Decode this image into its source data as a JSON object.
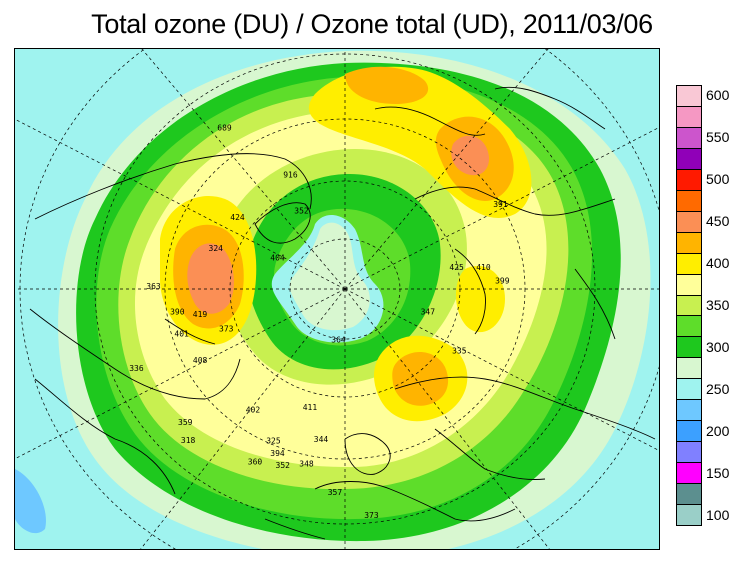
{
  "title": "Total ozone (DU) / Ozone total (UD), 2011/03/06",
  "legend": {
    "levels": [
      {
        "value": "600",
        "color": "#f9c8d5"
      },
      {
        "value": "",
        "color": "#f598c3"
      },
      {
        "value": "550",
        "color": "#cc55cc"
      },
      {
        "value": "",
        "color": "#9000b8"
      },
      {
        "value": "500",
        "color": "#ff1a00"
      },
      {
        "value": "",
        "color": "#ff6a00"
      },
      {
        "value": "450",
        "color": "#fb8f55"
      },
      {
        "value": "",
        "color": "#ffb400"
      },
      {
        "value": "400",
        "color": "#ffee00"
      },
      {
        "value": "",
        "color": "#ffff9a"
      },
      {
        "value": "350",
        "color": "#c8f050"
      },
      {
        "value": "",
        "color": "#5edd2a"
      },
      {
        "value": "300",
        "color": "#1ec81e"
      },
      {
        "value": "",
        "color": "#d8f7d0"
      },
      {
        "value": "250",
        "color": "#9ff3ef"
      },
      {
        "value": "",
        "color": "#6ec8ff"
      },
      {
        "value": "200",
        "color": "#3ca0ff"
      },
      {
        "value": "",
        "color": "#8080ff"
      },
      {
        "value": "150",
        "color": "#ff00ff"
      },
      {
        "value": "",
        "color": "#5c8f8f"
      },
      {
        "value": "100",
        "color": "#9acfc8"
      }
    ]
  },
  "observations": [
    {
      "label": "391",
      "lon": -118,
      "lat": 52
    },
    {
      "label": "410",
      "lon": -98,
      "lat": 60
    },
    {
      "label": "425",
      "lon": -100,
      "lat": 66
    },
    {
      "label": "399",
      "lon": -92,
      "lat": 56
    },
    {
      "label": "347",
      "lon": -72,
      "lat": 72
    },
    {
      "label": "335",
      "lon": -60,
      "lat": 62
    },
    {
      "label": "364",
      "lon": 15,
      "lat": 78
    },
    {
      "label": "373",
      "lon": 72,
      "lat": 60
    },
    {
      "label": "419",
      "lon": 80,
      "lat": 55
    },
    {
      "label": "401",
      "lon": 75,
      "lat": 50
    },
    {
      "label": "408",
      "lon": 65,
      "lat": 52
    },
    {
      "label": "390",
      "lon": 82,
      "lat": 50
    },
    {
      "label": "363",
      "lon": 90,
      "lat": 45
    },
    {
      "label": "336",
      "lon": 70,
      "lat": 38
    },
    {
      "label": "359",
      "lon": 52,
      "lat": 42
    },
    {
      "label": "318",
      "lon": 48,
      "lat": 40
    },
    {
      "label": "325",
      "lon": 28,
      "lat": 52
    },
    {
      "label": "394",
      "lon": 25,
      "lat": 50
    },
    {
      "label": "352",
      "lon": 22,
      "lat": 48
    },
    {
      "label": "360",
      "lon": 30,
      "lat": 46
    },
    {
      "label": "344",
      "lon": 12,
      "lat": 56
    },
    {
      "label": "357",
      "lon": 5,
      "lat": 45
    },
    {
      "label": "373",
      "lon": -5,
      "lat": 40
    },
    {
      "label": "916",
      "lon": 150,
      "lat": 62
    },
    {
      "label": "689",
      "lon": 140,
      "lat": 45
    },
    {
      "label": "424",
      "lon": 120,
      "lat": 60
    },
    {
      "label": "404",
      "lon": 110,
      "lat": 72
    },
    {
      "label": "324",
      "lon": 105,
      "lat": 58
    },
    {
      "label": "352",
      "lon": 145,
      "lat": 70
    },
    {
      "label": "411",
      "lon": 20,
      "lat": 62
    },
    {
      "label": "402",
      "lon": 40,
      "lat": 55
    },
    {
      "label": "348",
      "lon": 15,
      "lat": 50
    }
  ]
}
